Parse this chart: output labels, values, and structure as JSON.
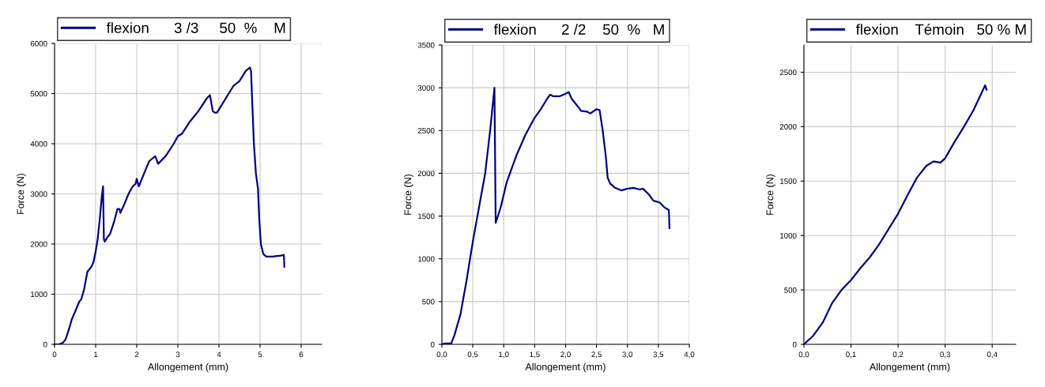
{
  "chart_data": [
    {
      "type": "line",
      "xlabel": "Allongement (mm)",
      "ylabel": "Force (N)",
      "grid": true,
      "legend": "top",
      "xlim": [
        0,
        6.5
      ],
      "ylim": [
        0,
        6000
      ],
      "xticks": [
        0,
        1,
        2,
        3,
        4,
        5,
        6
      ],
      "yticks": [
        0,
        1000,
        2000,
        3000,
        4000,
        5000,
        6000
      ],
      "series": [
        {
          "name": "flexion      3 /3     50  %    M",
          "color": "#000080",
          "x": [
            0,
            0.1,
            0.2,
            0.27,
            0.35,
            0.42,
            0.5,
            0.6,
            0.65,
            0.72,
            0.8,
            0.85,
            0.9,
            0.95,
            1.0,
            1.05,
            1.1,
            1.15,
            1.18,
            1.2,
            1.22,
            1.3,
            1.35,
            1.45,
            1.53,
            1.58,
            1.6,
            1.7,
            1.8,
            1.9,
            1.97,
            2.0,
            2.05,
            2.1,
            2.2,
            2.3,
            2.4,
            2.45,
            2.52,
            2.7,
            2.9,
            3.0,
            3.1,
            3.3,
            3.5,
            3.7,
            3.78,
            3.85,
            3.9,
            3.95,
            4.05,
            4.2,
            4.35,
            4.5,
            4.65,
            4.75,
            4.78,
            4.85,
            4.9,
            4.95,
            4.98,
            5.02,
            5.08,
            5.15,
            5.3,
            5.5,
            5.58,
            5.59
          ],
          "values": [
            0,
            0,
            30,
            100,
            300,
            500,
            650,
            850,
            900,
            1100,
            1450,
            1500,
            1550,
            1650,
            1850,
            2100,
            2500,
            2950,
            3150,
            2100,
            2050,
            2150,
            2200,
            2450,
            2700,
            2700,
            2620,
            2800,
            3000,
            3150,
            3200,
            3300,
            3150,
            3250,
            3450,
            3650,
            3720,
            3750,
            3600,
            3750,
            4000,
            4150,
            4200,
            4450,
            4650,
            4900,
            4970,
            4650,
            4620,
            4620,
            4750,
            4950,
            5150,
            5250,
            5450,
            5520,
            5450,
            4000,
            3400,
            3100,
            2500,
            2000,
            1800,
            1750,
            1750,
            1770,
            1780,
            1550
          ]
        }
      ]
    },
    {
      "type": "line",
      "xlabel": "Allongement (mm)",
      "ylabel": "Force (N)",
      "grid": true,
      "legend": "top",
      "xlim": [
        0,
        4.0
      ],
      "ylim": [
        0,
        3500
      ],
      "xticks": [
        {
          "value": 0,
          "label": "0,0"
        },
        {
          "value": 0.5,
          "label": "0,5"
        },
        {
          "value": 1.0,
          "label": "1,0"
        },
        {
          "value": 1.5,
          "label": "1,5"
        },
        {
          "value": 2.0,
          "label": "2,0"
        },
        {
          "value": 2.5,
          "label": "2,5"
        },
        {
          "value": 3.0,
          "label": "3,0"
        },
        {
          "value": 3.5,
          "label": "3,5"
        },
        {
          "value": 4.0,
          "label": "4,0"
        }
      ],
      "yticks": [
        0,
        500,
        1000,
        1500,
        2000,
        2500,
        3000,
        3500
      ],
      "series": [
        {
          "name": "flexion      2 /2    50  %   M",
          "color": "#000080",
          "x": [
            0,
            0.05,
            0.15,
            0.2,
            0.3,
            0.4,
            0.5,
            0.6,
            0.7,
            0.78,
            0.85,
            0.87,
            0.95,
            1.05,
            1.2,
            1.35,
            1.5,
            1.6,
            1.7,
            1.75,
            1.8,
            1.9,
            2.0,
            2.05,
            2.1,
            2.2,
            2.25,
            2.35,
            2.4,
            2.5,
            2.55,
            2.6,
            2.65,
            2.68,
            2.72,
            2.8,
            2.9,
            3.0,
            3.1,
            3.2,
            3.25,
            3.35,
            3.42,
            3.52,
            3.6,
            3.67,
            3.68
          ],
          "values": [
            0,
            10,
            10,
            100,
            350,
            750,
            1200,
            1600,
            2000,
            2500,
            3000,
            1420,
            1600,
            1900,
            2200,
            2450,
            2650,
            2750,
            2870,
            2920,
            2900,
            2900,
            2930,
            2950,
            2870,
            2780,
            2730,
            2720,
            2700,
            2750,
            2740,
            2500,
            2200,
            1950,
            1880,
            1830,
            1800,
            1820,
            1830,
            1810,
            1820,
            1750,
            1680,
            1660,
            1600,
            1570,
            1360
          ]
        }
      ]
    },
    {
      "type": "line",
      "xlabel": "Allongement (mm)",
      "ylabel": "Force (N)",
      "grid": true,
      "legend": "top",
      "xlim": [
        0,
        0.45
      ],
      "ylim": [
        0,
        2750
      ],
      "xticks": [
        {
          "value": 0,
          "label": "0,0"
        },
        {
          "value": 0.1,
          "label": "0,1"
        },
        {
          "value": 0.2,
          "label": "0,2"
        },
        {
          "value": 0.3,
          "label": "0,3"
        },
        {
          "value": 0.4,
          "label": "0,4"
        }
      ],
      "yticks": [
        0,
        500,
        1000,
        1500,
        2000,
        2500
      ],
      "series": [
        {
          "name": "flexion    Témoin   50 % M",
          "color": "#000080",
          "x": [
            0,
            0.02,
            0.04,
            0.06,
            0.08,
            0.1,
            0.12,
            0.14,
            0.16,
            0.18,
            0.2,
            0.22,
            0.24,
            0.26,
            0.275,
            0.29,
            0.3,
            0.32,
            0.34,
            0.36,
            0.385,
            0.388
          ],
          "values": [
            0,
            80,
            200,
            380,
            500,
            590,
            700,
            800,
            920,
            1060,
            1200,
            1370,
            1530,
            1640,
            1680,
            1670,
            1710,
            1860,
            2000,
            2150,
            2380,
            2340
          ]
        }
      ]
    }
  ]
}
